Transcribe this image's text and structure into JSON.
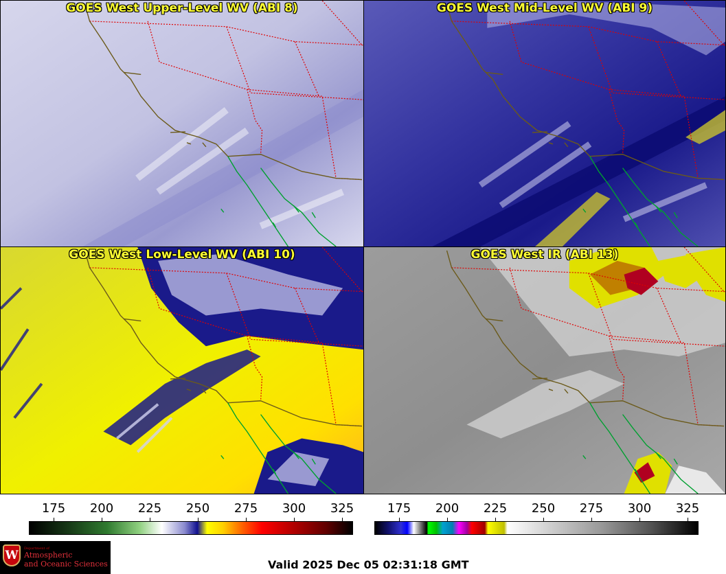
{
  "panels": [
    {
      "title": "GOES West Upper-Level WV (ABI 8)"
    },
    {
      "title": "GOES West Mid-Level WV (ABI 9)"
    },
    {
      "title": "GOES West Low-Level WV (ABI 10)"
    },
    {
      "title": "GOES West IR (ABI 13)"
    }
  ],
  "colorbars": {
    "wv": {
      "ticks": [
        "175",
        "200",
        "225",
        "250",
        "275",
        "300",
        "325"
      ]
    },
    "ir": {
      "ticks": [
        "175",
        "200",
        "225",
        "250",
        "275",
        "300",
        "325"
      ]
    }
  },
  "logo": {
    "dept": "Department of",
    "line1": "Atmospheric",
    "line2": "and Oceanic Sciences",
    "seal_letter": "W"
  },
  "valid_time": "Valid 2025 Dec 05 02:31:18 GMT",
  "colors": {
    "title_text": "#ffff33",
    "state_borders": "#e00000",
    "coastline": "#6b5a1a",
    "baja_coastline": "#00a030",
    "logo_red": "#c5050c"
  }
}
